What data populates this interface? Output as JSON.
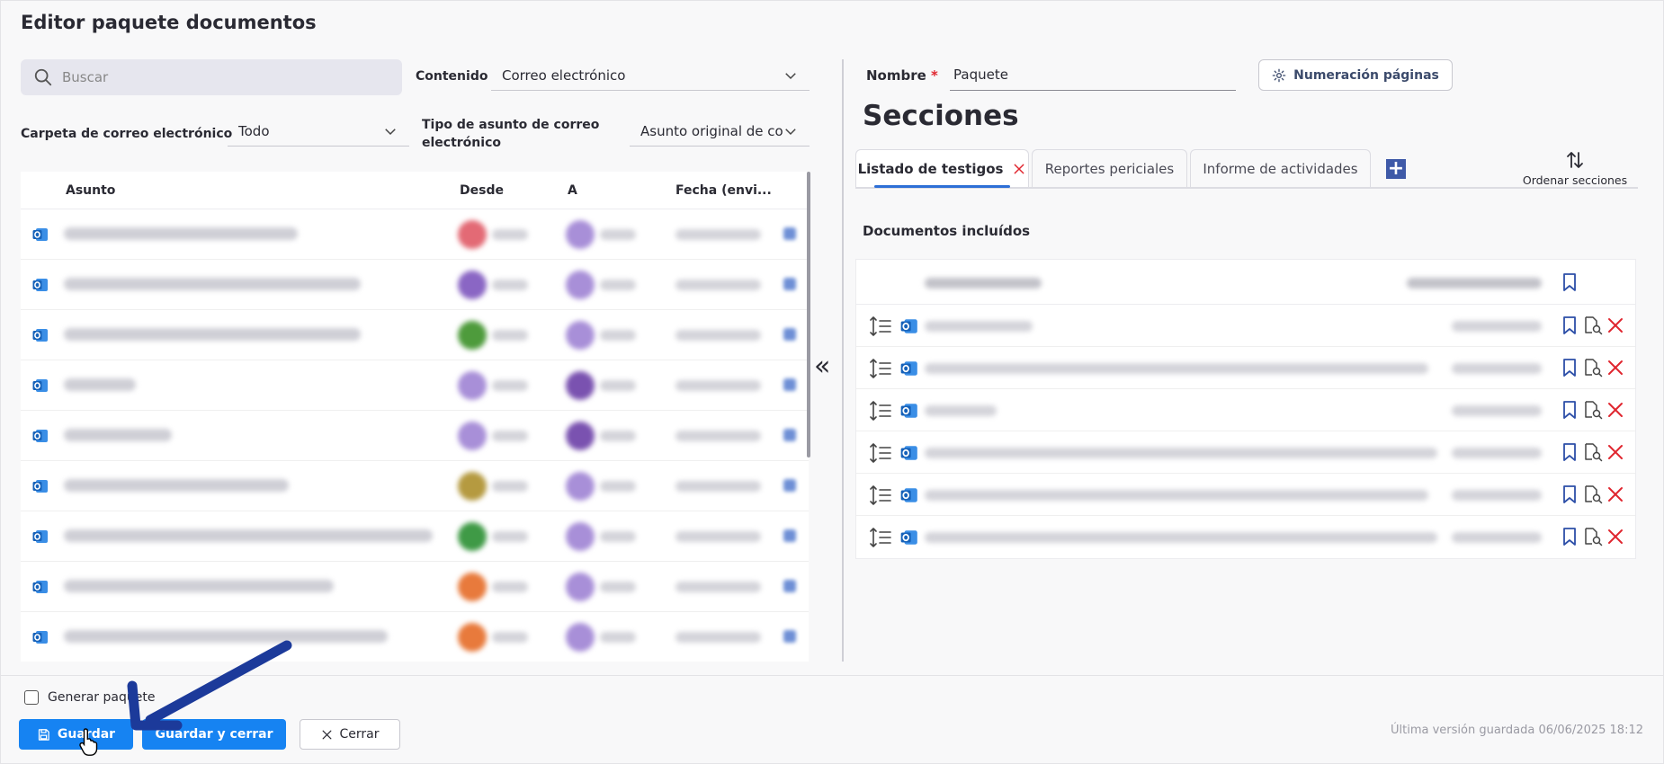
{
  "window": {
    "title": "Editor paquete documentos"
  },
  "left": {
    "search_placeholder": "Buscar",
    "contenido_label": "Contenido",
    "contenido_value": "Correo electrónico",
    "carpeta_label": "Carpeta de correo electrónico",
    "carpeta_value": "Todo",
    "tipo_label_1": "Tipo de asunto de correo",
    "tipo_label_2": "electrónico",
    "tipo_value": "Asunto original de co",
    "columns": [
      "Asunto",
      "Desde",
      "A",
      "Fecha (envi..."
    ],
    "rows": [
      {
        "from_color": "#e36a75",
        "to_color": "#a88fd8"
      },
      {
        "from_color": "#8a66c4",
        "to_color": "#a88fd8"
      },
      {
        "from_color": "#4e9b3c",
        "to_color": "#a88fd8"
      },
      {
        "from_color": "#a88fd8",
        "to_color": "#7a52b0"
      },
      {
        "from_color": "#a88fd8",
        "to_color": "#7a52b0"
      },
      {
        "from_color": "#b59a40",
        "to_color": "#a88fd8"
      },
      {
        "from_color": "#3f9a46",
        "to_color": "#a88fd8"
      },
      {
        "from_color": "#e87a3c",
        "to_color": "#a88fd8"
      },
      {
        "from_color": "#e87a3c",
        "to_color": "#a88fd8"
      }
    ]
  },
  "right": {
    "nombre_label": "Nombre",
    "required_mark": "*",
    "nombre_value": "Paquete",
    "numeracion_button": "Numeración páginas",
    "sections_title": "Secciones",
    "tabs": [
      {
        "label": "Listado de testigos",
        "active": true
      },
      {
        "label": "Reportes periciales",
        "active": false
      },
      {
        "label": "Informe de actividades",
        "active": false
      }
    ],
    "add_tab": "+",
    "order_sections": "Ordenar secciones",
    "docs_title": "Documentos incluídos",
    "doc_rows": 6
  },
  "footer": {
    "generate_label": "Generar paquete",
    "save": "Guardar",
    "save_close": "Guardar y cerrar",
    "close": "Cerrar",
    "last_saved": "Última versión guardada 06/06/2025 18:12"
  },
  "colors": {
    "primary": "#1683f2",
    "accent_tab": "#2d6fd6",
    "delete": "#e0262f",
    "outlook": "#1f6fc5",
    "annotation_arrow": "#1c3a9a"
  }
}
